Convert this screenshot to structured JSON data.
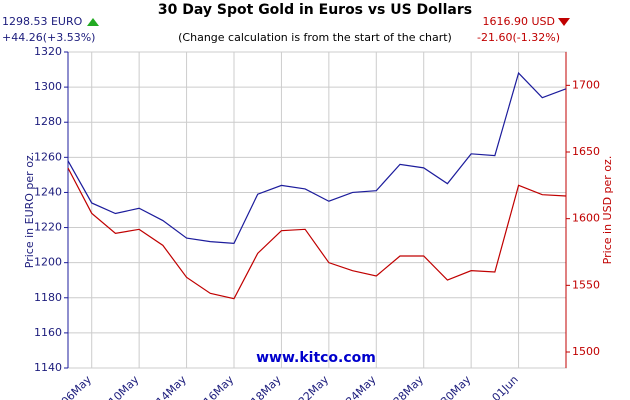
{
  "chart_data": {
    "type": "line",
    "title": "30 Day Spot Gold in Euros vs US Dollars",
    "subtitle": "(Change calculation is from the start of the chart)",
    "annotations": [
      "1298.53 EURO",
      "+44.26(+3.53%)",
      "1616.90 USD",
      "-21.60(-1.32%)",
      "www.kitco.com"
    ],
    "ylabel": "Price in EURO per oz.",
    "y2label": "Price in USD per oz.",
    "categories": [
      null,
      "06May",
      null,
      "10May",
      null,
      "14May",
      null,
      "16May",
      null,
      "18May",
      null,
      "22May",
      null,
      "24May",
      null,
      "28May",
      null,
      "30May",
      null,
      "01Jun",
      null,
      null
    ],
    "series": [
      {
        "color": "#1c1c9c",
        "values": [
          1258,
          1234,
          1228,
          1231,
          1224,
          1214,
          1212,
          1211,
          1239,
          1244,
          1242,
          1235,
          1240,
          1241,
          1256,
          1254,
          1245,
          1262,
          1261,
          1308,
          1294,
          1299
        ]
      },
      {
        "color": "#c00000",
        "axis": "y2",
        "values": [
          1638,
          1604,
          1589,
          1592,
          1580,
          1556,
          1544,
          1540,
          1574,
          1591,
          1592,
          1567,
          1561,
          1557,
          1572,
          1572,
          1554,
          1561,
          1560,
          1625,
          1618,
          1617
        ]
      }
    ],
    "ylim": [
      1140,
      1320
    ],
    "yticks": [
      1140,
      1160,
      1180,
      1200,
      1220,
      1240,
      1260,
      1280,
      1300,
      1320
    ],
    "y2lim": [
      1488,
      1725
    ],
    "y2ticks": [
      1500,
      1550,
      1600,
      1650,
      1700
    ],
    "grid": true
  }
}
